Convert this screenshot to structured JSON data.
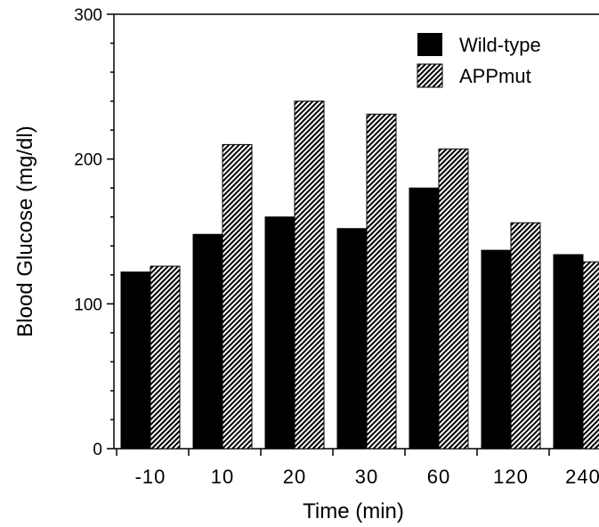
{
  "chart_data": {
    "type": "bar",
    "categories": [
      "-10",
      "10",
      "20",
      "30",
      "60",
      "120",
      "240"
    ],
    "series": [
      {
        "name": "Wild-type",
        "values": [
          122,
          148,
          160,
          152,
          180,
          137,
          134
        ],
        "pattern": "solid",
        "color": "#000000"
      },
      {
        "name": "APPmut",
        "values": [
          126,
          210,
          240,
          231,
          207,
          156,
          129
        ],
        "pattern": "hatched",
        "color": "#000000"
      }
    ],
    "xlabel": "Time (min)",
    "ylabel": "Blood Glucose (mg/dl)",
    "ylim": [
      0,
      300
    ],
    "yticks": [
      0,
      100,
      200,
      300
    ],
    "grid": false,
    "legend_position": "top-right"
  }
}
